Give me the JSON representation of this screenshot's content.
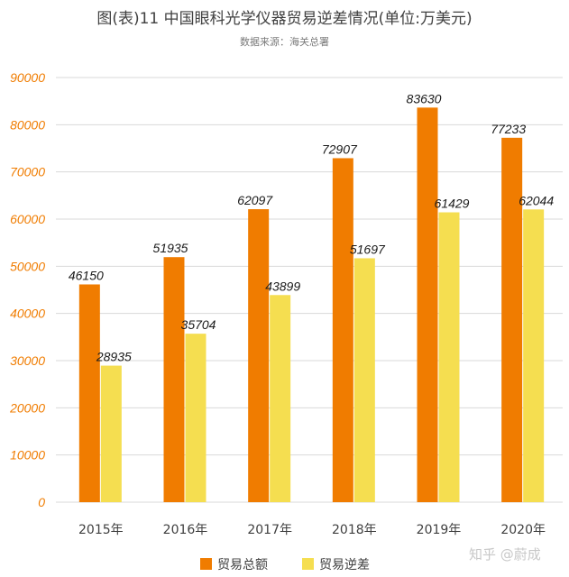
{
  "title": "图(表)11 中国眼科光学仪器贸易逆差情况(单位:万美元)",
  "subtitle": "数据来源：海关总署",
  "watermark": "知乎 @蔚成",
  "colors": {
    "total": "#f07c00",
    "deficit": "#f5de50",
    "yTick": "#f07c00",
    "grid": "#d9d9d9",
    "axisText": "#404040"
  },
  "chart_data": {
    "type": "bar",
    "categories": [
      "2015年",
      "2016年",
      "2017年",
      "2018年",
      "2019年",
      "2020年"
    ],
    "series": [
      {
        "name": "贸易总额",
        "values": [
          46150,
          51935,
          62097,
          72907,
          83630,
          77233
        ]
      },
      {
        "name": "贸易逆差",
        "values": [
          28935,
          35704,
          43899,
          51697,
          61429,
          62044
        ]
      }
    ],
    "ylim": [
      0,
      90000
    ],
    "yticks": [
      0,
      10000,
      20000,
      30000,
      40000,
      50000,
      60000,
      70000,
      80000,
      90000
    ],
    "grid": true,
    "legend": "bottom"
  }
}
